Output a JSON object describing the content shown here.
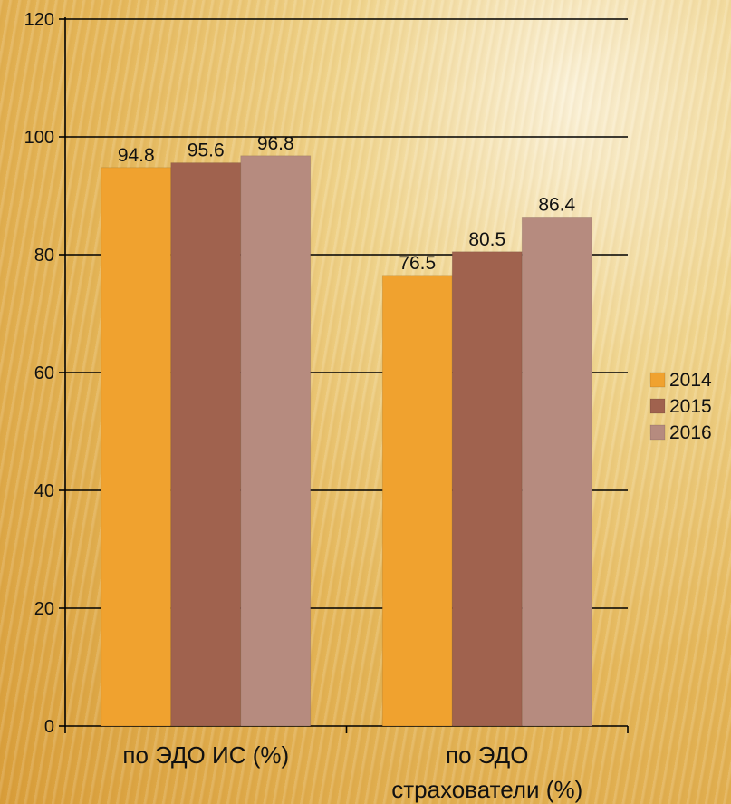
{
  "chart_data": {
    "type": "bar",
    "categories": [
      [
        "по ЭДО ИС (%)"
      ],
      [
        "по ЭДО",
        "страхователи (%)"
      ]
    ],
    "series": [
      {
        "name": "2014",
        "color": "#f0a22f",
        "values": [
          94.8,
          76.5
        ]
      },
      {
        "name": "2015",
        "color": "#a0624e",
        "values": [
          95.6,
          80.5
        ]
      },
      {
        "name": "2016",
        "color": "#b68b7f",
        "values": [
          96.8,
          86.4
        ]
      }
    ],
    "value_labels": [
      [
        "94.8",
        "76.5"
      ],
      [
        "95.6",
        "80.5"
      ],
      [
        "96.8",
        "86.4"
      ]
    ],
    "y_ticks": [
      "0",
      "20",
      "40",
      "60",
      "80",
      "100",
      "120"
    ],
    "ylim": [
      0,
      120
    ],
    "grid": true,
    "legend_position": "right"
  }
}
